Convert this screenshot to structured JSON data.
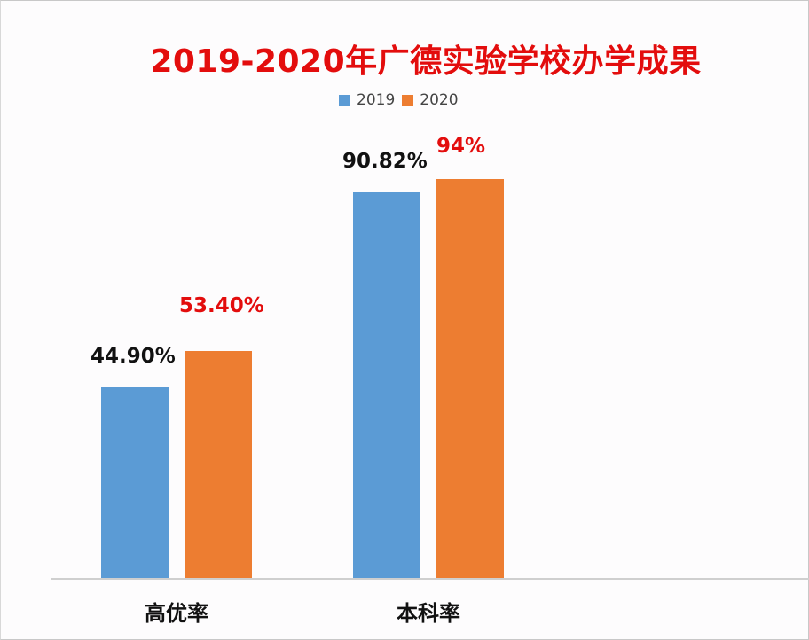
{
  "chart_data": {
    "type": "bar",
    "title": "2019-2020年广德实验学校办学成果",
    "categories": [
      "高优率",
      "本科率"
    ],
    "series": [
      {
        "name": "2019",
        "color": "#5b9bd5",
        "values": [
          44.9,
          90.82
        ],
        "labels": [
          "44.90%",
          "90.82%"
        ],
        "label_color": "#111111"
      },
      {
        "name": "2020",
        "color": "#ed7d31",
        "values": [
          53.4,
          94
        ],
        "labels": [
          "53.40%",
          "94%"
        ],
        "label_color": "#e30d0d"
      }
    ],
    "xlabel": "",
    "ylabel": "",
    "ylim": [
      0,
      100
    ],
    "grid": false,
    "legend_position": "top"
  },
  "colors": {
    "title": "#e30d0d",
    "series_2019": "#5b9bd5",
    "series_2020": "#ed7d31",
    "axis": "#cfcfcf"
  }
}
